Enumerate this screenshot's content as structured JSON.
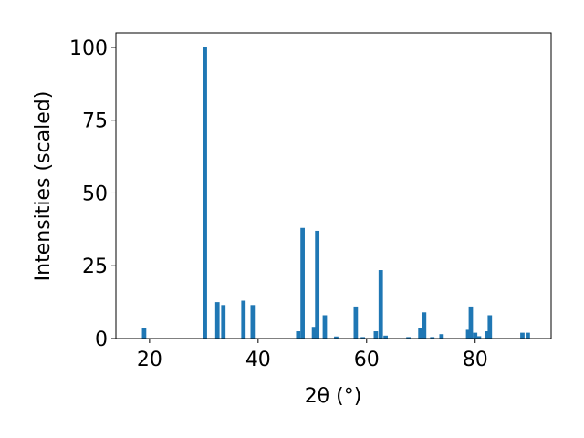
{
  "chart_data": {
    "type": "bar",
    "x_label": "2θ (°)",
    "y_label": "Intensities (scaled)",
    "x": [
      19.0,
      30.2,
      32.5,
      33.6,
      37.3,
      39.0,
      47.4,
      48.2,
      50.3,
      50.9,
      52.3,
      54.4,
      58.0,
      59.3,
      61.7,
      62.6,
      63.5,
      67.7,
      69.9,
      70.6,
      72.1,
      73.8,
      78.7,
      79.2,
      80.0,
      80.7,
      82.2,
      82.7,
      88.7,
      89.7
    ],
    "values": [
      3.5,
      100,
      12.5,
      11.5,
      13,
      11.5,
      2.5,
      38,
      4,
      37,
      8,
      0.7,
      11,
      0.5,
      2.5,
      23.5,
      1,
      0.5,
      3.5,
      9,
      0.5,
      1.5,
      3,
      11,
      2,
      0.8,
      2.5,
      8,
      2,
      2
    ],
    "bar_width": 0.8,
    "color": "#1f77b4",
    "xlim": [
      13.8,
      94
    ],
    "ylim": [
      0,
      105
    ],
    "xticks": [
      20,
      40,
      60,
      80
    ],
    "yticks": [
      0,
      25,
      50,
      75,
      100
    ],
    "grid": false
  }
}
